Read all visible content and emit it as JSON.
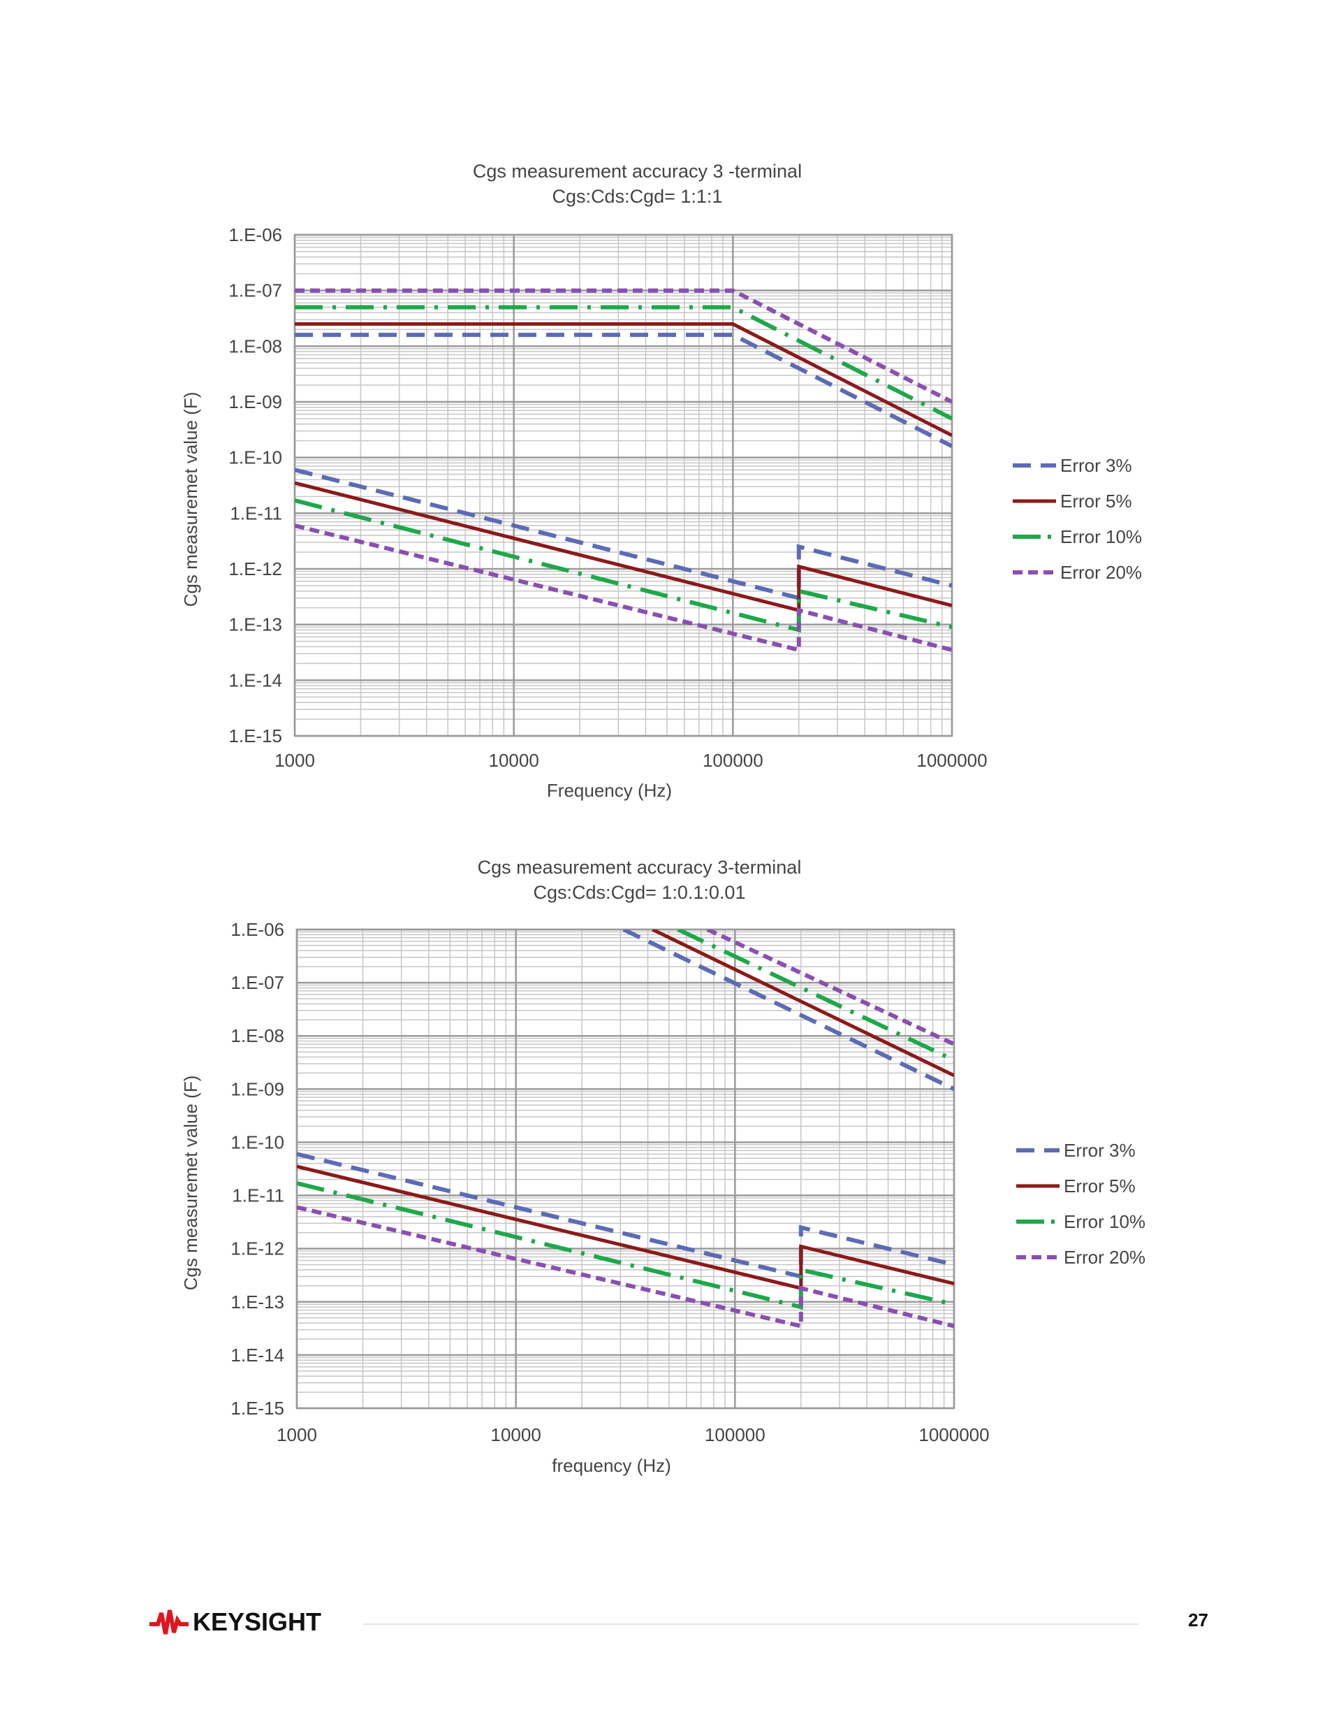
{
  "colors": {
    "error_3": "#5b6bb5",
    "error_5": "#8b1a1a",
    "error_10": "#1ea84a",
    "error_20": "#8a4fb0",
    "grid_major": "#9a9a9a",
    "grid_minor": "#c6c6c6",
    "text": "#444444",
    "logo_red": "#e0161f"
  },
  "chart_data": [
    {
      "type": "line",
      "scale": "log-log",
      "title": "Cgs measurement accuracy  3 -terminal",
      "subtitle": "Cgs:Cds:Cgd= 1:1:1",
      "xlabel": "Frequency (Hz)",
      "ylabel": "Cgs measuremet value (F)",
      "xlim": [
        1000,
        1000000
      ],
      "ylim": [
        1e-15,
        1e-06
      ],
      "x_tick_labels": [
        "1000",
        "10000",
        "100000",
        "1000000"
      ],
      "y_tick_labels": [
        "1.E-06",
        "1.E-07",
        "1.E-08",
        "1.E-09",
        "1.E-10",
        "1.E-11",
        "1.E-12",
        "1.E-13",
        "1.E-14",
        "1.E-15"
      ],
      "grid": true,
      "legend_position": "right",
      "series": [
        {
          "name": "Error 3%",
          "style": "dash",
          "upper": [
            [
              1000,
              1.6e-08
            ],
            [
              100000,
              1.6e-08
            ],
            [
              1000000,
              1.6e-10
            ]
          ],
          "lower": [
            [
              1000,
              6e-11
            ],
            [
              200000,
              3e-13
            ],
            [
              200000,
              2.5e-12
            ],
            [
              1000000,
              5e-13
            ]
          ]
        },
        {
          "name": "Error 5%",
          "style": "solid",
          "upper": [
            [
              1000,
              2.5e-08
            ],
            [
              100000,
              2.5e-08
            ],
            [
              1000000,
              2.5e-10
            ]
          ],
          "lower": [
            [
              1000,
              3.5e-11
            ],
            [
              200000,
              1.8e-13
            ],
            [
              200000,
              1.1e-12
            ],
            [
              1000000,
              2.2e-13
            ]
          ]
        },
        {
          "name": "Error 10%",
          "style": "dashdot",
          "upper": [
            [
              1000,
              5e-08
            ],
            [
              100000,
              5e-08
            ],
            [
              1000000,
              5e-10
            ]
          ],
          "lower": [
            [
              1000,
              1.7e-11
            ],
            [
              200000,
              8e-14
            ],
            [
              200000,
              4e-13
            ],
            [
              1000000,
              9e-14
            ]
          ]
        },
        {
          "name": "Error 20%",
          "style": "dot",
          "upper": [
            [
              1000,
              1e-07
            ],
            [
              100000,
              1e-07
            ],
            [
              1000000,
              1e-09
            ]
          ],
          "lower": [
            [
              1000,
              6e-12
            ],
            [
              200000,
              3.5e-14
            ],
            [
              200000,
              1.8e-13
            ],
            [
              1000000,
              3.5e-14
            ]
          ]
        }
      ]
    },
    {
      "type": "line",
      "scale": "log-log",
      "title": "Cgs measurement accuracy 3-terminal",
      "subtitle": "Cgs:Cds:Cgd= 1:0.1:0.01",
      "xlabel": "frequency (Hz)",
      "ylabel": "Cgs measuremet value (F)",
      "xlim": [
        1000,
        1000000
      ],
      "ylim": [
        1e-15,
        1e-06
      ],
      "x_tick_labels": [
        "1000",
        "10000",
        "100000",
        "1000000"
      ],
      "y_tick_labels": [
        "1.E-06",
        "1.E-07",
        "1.E-08",
        "1.E-09",
        "1.E-10",
        "1.E-11",
        "1.E-12",
        "1.E-13",
        "1.E-14",
        "1.E-15"
      ],
      "grid": true,
      "legend_position": "right",
      "series": [
        {
          "name": "Error 3%",
          "style": "dash",
          "upper": [
            [
              31000,
              1e-06
            ],
            [
              1000000,
              1e-09
            ]
          ],
          "lower": [
            [
              1000,
              6e-11
            ],
            [
              200000,
              3e-13
            ],
            [
              200000,
              2.5e-12
            ],
            [
              1000000,
              5e-13
            ]
          ]
        },
        {
          "name": "Error 5%",
          "style": "solid",
          "upper": [
            [
              42000,
              1e-06
            ],
            [
              1000000,
              1.8e-09
            ]
          ],
          "lower": [
            [
              1000,
              3.5e-11
            ],
            [
              200000,
              1.8e-13
            ],
            [
              200000,
              1.1e-12
            ],
            [
              1000000,
              2.2e-13
            ]
          ]
        },
        {
          "name": "Error 10%",
          "style": "dashdot",
          "upper": [
            [
              55000,
              1e-06
            ],
            [
              1000000,
              3.5e-09
            ]
          ],
          "lower": [
            [
              1000,
              1.7e-11
            ],
            [
              200000,
              8e-14
            ],
            [
              200000,
              4e-13
            ],
            [
              1000000,
              9e-14
            ]
          ]
        },
        {
          "name": "Error 20%",
          "style": "dot",
          "upper": [
            [
              75000,
              1e-06
            ],
            [
              1000000,
              7e-09
            ]
          ],
          "lower": [
            [
              1000,
              6e-12
            ],
            [
              200000,
              3.5e-14
            ],
            [
              200000,
              1.8e-13
            ],
            [
              1000000,
              3.5e-14
            ]
          ]
        }
      ]
    }
  ],
  "footer": {
    "logo_text": "KEYSIGHT",
    "page_number": "27"
  }
}
